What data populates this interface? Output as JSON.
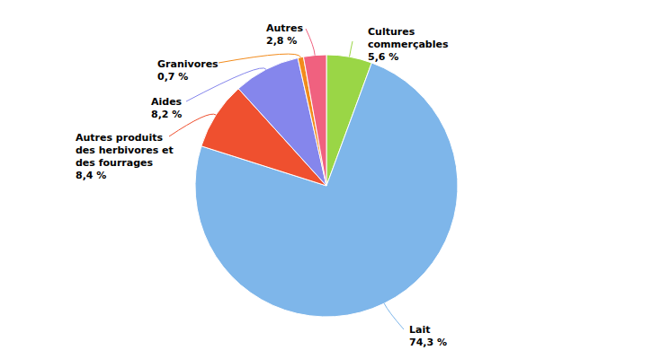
{
  "chart_data": {
    "type": "pie",
    "categories": [
      "Cultures commerçables",
      "Lait",
      "Autres produits des herbivores et des fourrages",
      "Aides",
      "Granivores",
      "Autres"
    ],
    "values": [
      5.6,
      74.3,
      8.4,
      8.2,
      0.7,
      2.8
    ],
    "value_labels": [
      "5,6 %",
      "74,3 %",
      "8,4 %",
      "8,2 %",
      "0,7 %",
      "2,8 %"
    ],
    "colors": [
      "#9ad646",
      "#7eb6ea",
      "#ef502f",
      "#8586ec",
      "#f28b1c",
      "#f0617f"
    ],
    "data_labels": true
  }
}
